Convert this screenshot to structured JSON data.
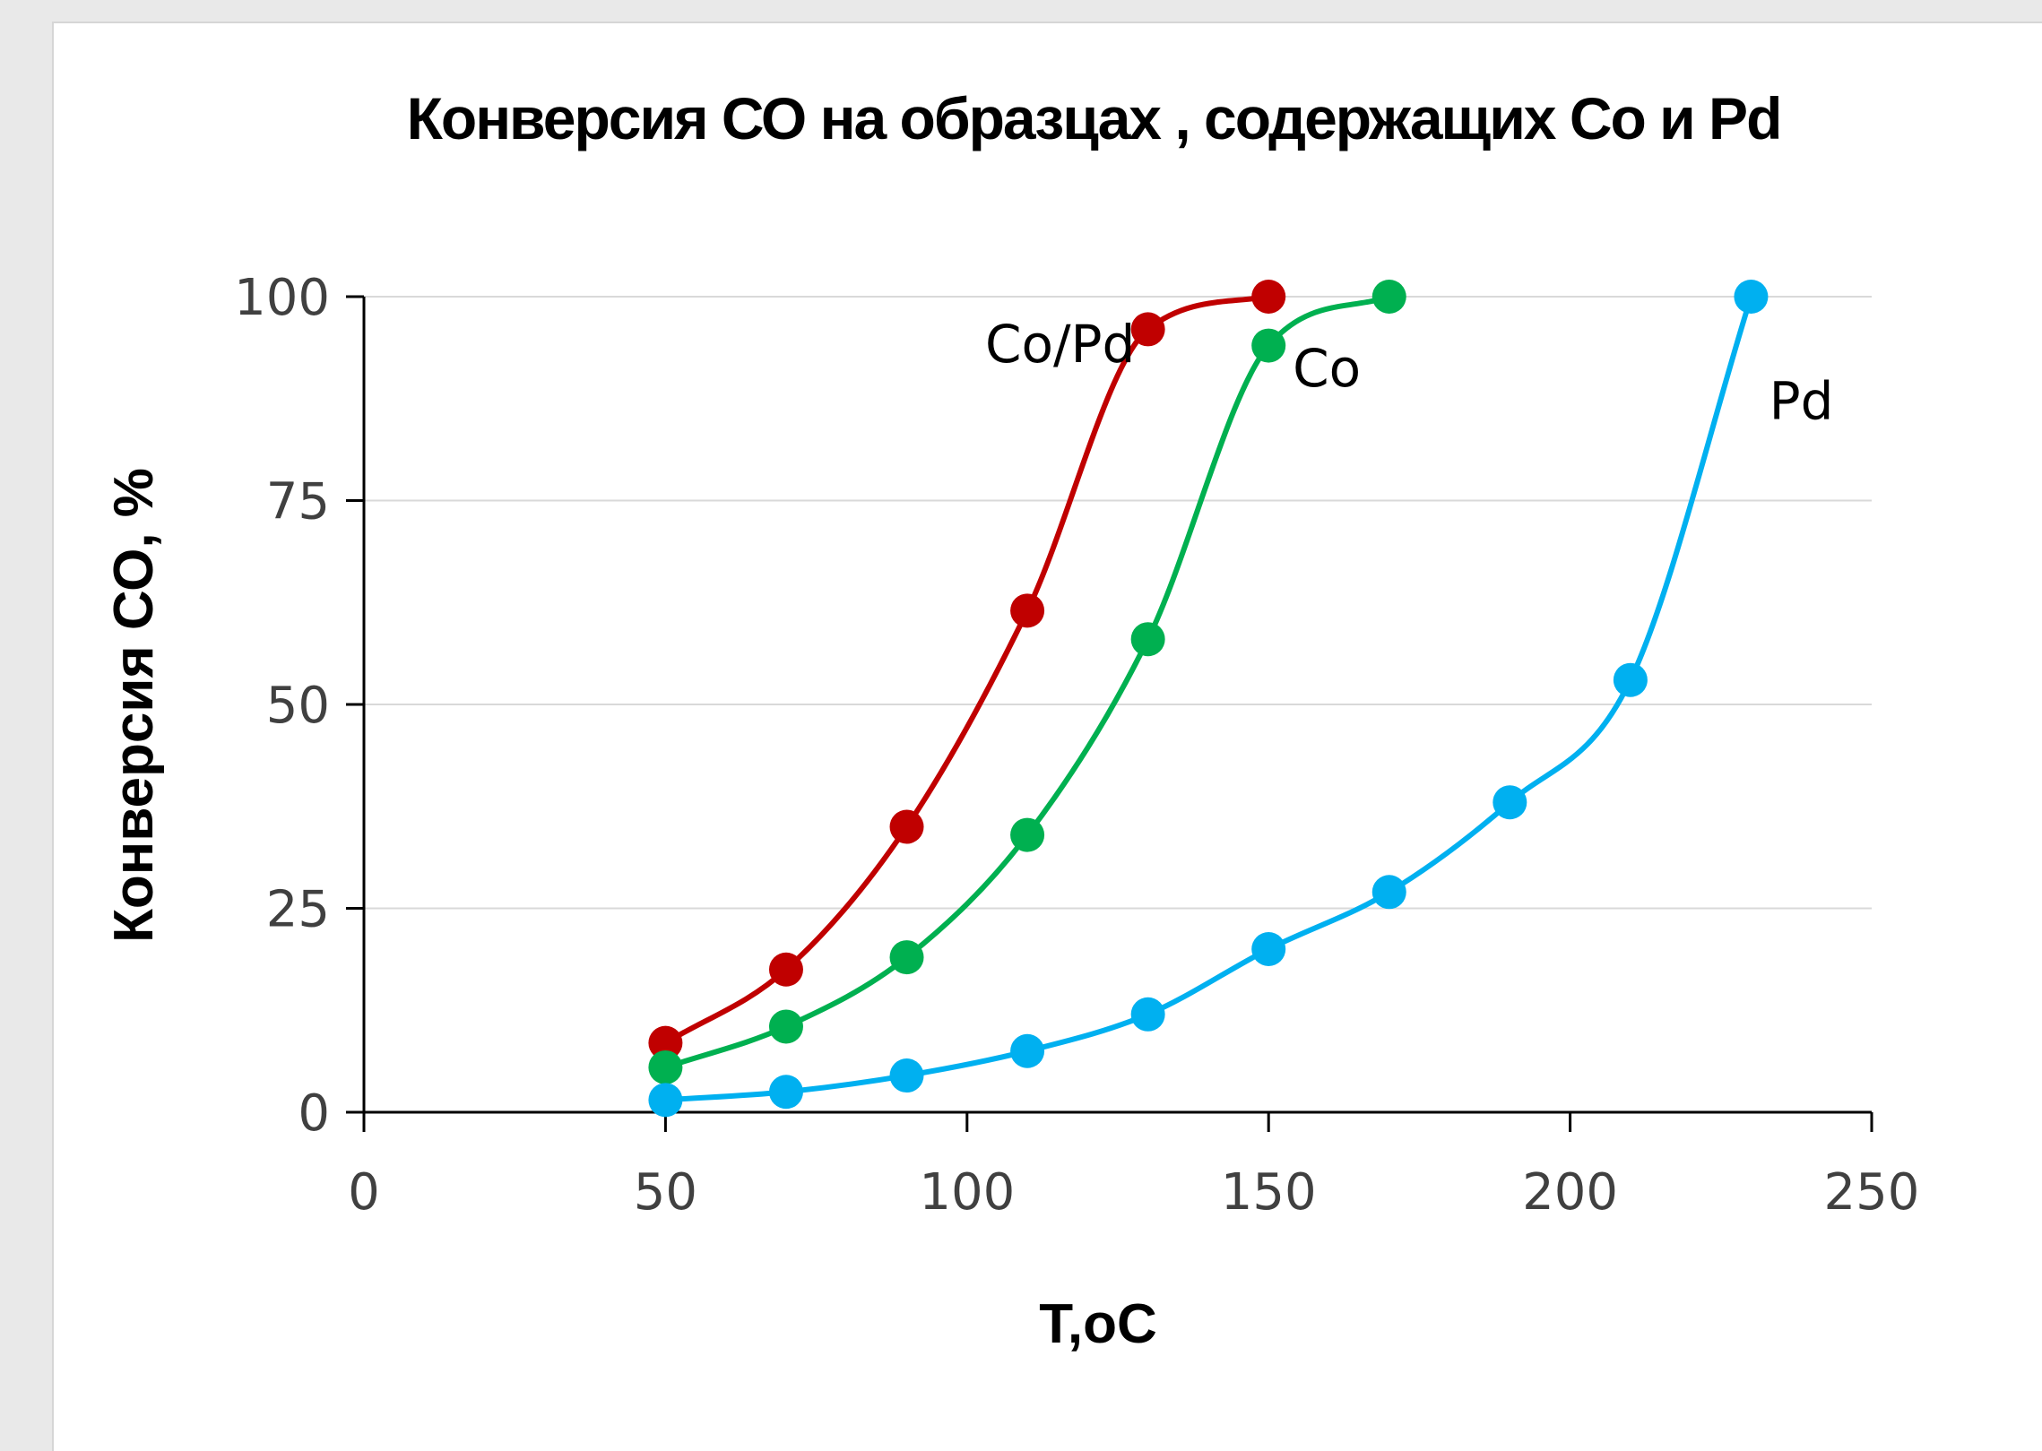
{
  "chart_data": {
    "type": "scatter",
    "title": "Конверсия СО на образцах , содержащих Со и Pd",
    "xlabel": "Т,оС",
    "ylabel": "Конверсия СО, %",
    "xlim": [
      0,
      250
    ],
    "ylim": [
      0,
      100
    ],
    "xticks": [
      0,
      50,
      100,
      150,
      200,
      250
    ],
    "yticks": [
      0,
      25,
      50,
      75,
      100
    ],
    "grid": "horizontal",
    "legend": "none",
    "series": [
      {
        "name": "Co/Pd",
        "color": "#c00000",
        "x": [
          50,
          70,
          90,
          110,
          130,
          150
        ],
        "y": [
          8.5,
          17.5,
          35,
          61.5,
          96,
          100
        ]
      },
      {
        "name": "Co",
        "color": "#00b050",
        "x": [
          50,
          70,
          90,
          110,
          130,
          150,
          170
        ],
        "y": [
          5.5,
          10.5,
          19,
          34,
          58,
          94,
          100
        ]
      },
      {
        "name": "Pd",
        "color": "#00b0f0",
        "x": [
          50,
          70,
          90,
          110,
          130,
          150,
          170,
          190,
          210,
          230
        ],
        "y": [
          1.5,
          2.5,
          4.5,
          7.5,
          12,
          20,
          27,
          38,
          53,
          100
        ]
      }
    ]
  }
}
